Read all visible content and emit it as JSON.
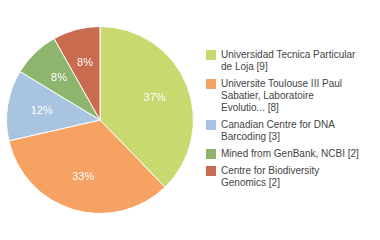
{
  "chart_data": {
    "type": "pie",
    "categories": [
      "Universidad Tecnica Particular\nde Loja [9]",
      "Universite Toulouse III Paul\nSabatier, Laboratoire\nEvolutio... [8]",
      "Canadian Centre for DNA\nBarcoding [3]",
      "Mined from GenBank, NCBI [2]",
      "Centre for Biodiversity\nGenomics [2]"
    ],
    "values": [
      37,
      33,
      12,
      8,
      8
    ],
    "value_labels": [
      "37%",
      "33%",
      "12%",
      "8%",
      "8%"
    ],
    "colors": [
      "#c8d96f",
      "#f5a263",
      "#a9c4e0",
      "#8db56e",
      "#c96b4e"
    ],
    "data_labels": true,
    "legend": "right"
  }
}
